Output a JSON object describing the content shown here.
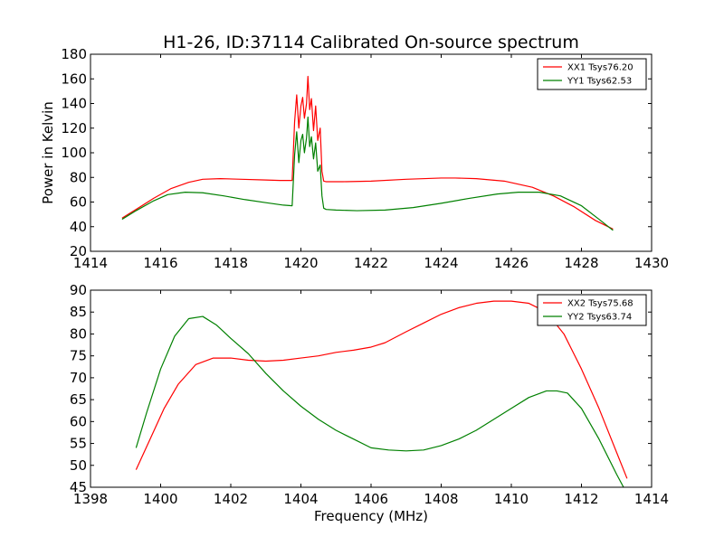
{
  "figure": {
    "title": "H1-26, ID:37114 Calibrated On-source spectrum"
  },
  "chart_data": [
    {
      "type": "line",
      "title": "H1-26, ID:37114 Calibrated On-source spectrum",
      "xlabel": "",
      "ylabel": "Power in Kelvin",
      "xlim": [
        1414,
        1430
      ],
      "ylim": [
        20,
        180
      ],
      "xticks": [
        "1414",
        "1416",
        "1418",
        "1420",
        "1422",
        "1424",
        "1426",
        "1428",
        "1430"
      ],
      "yticks": [
        "20",
        "40",
        "60",
        "80",
        "100",
        "120",
        "140",
        "160",
        "180"
      ],
      "grid": false,
      "legend_position": "top-right",
      "series": [
        {
          "name": "XX1 Tsys76.20",
          "color": "#ff0000",
          "x": [
            1414.9,
            1415.3,
            1415.8,
            1416.3,
            1416.8,
            1417.2,
            1417.7,
            1418.3,
            1418.9,
            1419.4,
            1419.75,
            1419.82,
            1419.88,
            1419.94,
            1420.0,
            1420.05,
            1420.1,
            1420.16,
            1420.2,
            1420.25,
            1420.3,
            1420.36,
            1420.42,
            1420.48,
            1420.55,
            1420.6,
            1420.65,
            1420.72,
            1421.2,
            1422.0,
            1423.0,
            1424.0,
            1424.4,
            1425.0,
            1425.8,
            1426.6,
            1427.2,
            1427.8,
            1428.4,
            1428.9
          ],
          "y": [
            47,
            54,
            63,
            71,
            76,
            78.5,
            79,
            78.5,
            78,
            77.5,
            77.5,
            125,
            147,
            120,
            138,
            145,
            128,
            140,
            162,
            135,
            144,
            118,
            138,
            110,
            120,
            85,
            77,
            76.5,
            76.5,
            77,
            78.5,
            79.5,
            79.5,
            79,
            77,
            72,
            65,
            56,
            45,
            38
          ]
        },
        {
          "name": "YY1 Tsys62.53",
          "color": "#008000",
          "x": [
            1414.9,
            1415.3,
            1415.8,
            1416.2,
            1416.7,
            1417.2,
            1417.8,
            1418.4,
            1419.0,
            1419.5,
            1419.75,
            1419.82,
            1419.88,
            1419.94,
            1420.0,
            1420.05,
            1420.1,
            1420.16,
            1420.2,
            1420.25,
            1420.3,
            1420.36,
            1420.42,
            1420.48,
            1420.55,
            1420.6,
            1420.65,
            1420.72,
            1421.0,
            1421.6,
            1422.4,
            1423.2,
            1424.0,
            1424.8,
            1425.6,
            1426.2,
            1426.8,
            1427.4,
            1428.0,
            1428.5,
            1428.9
          ],
          "y": [
            46,
            53,
            61,
            66,
            68,
            67.5,
            65,
            62,
            59.5,
            57.5,
            57,
            98,
            117,
            92,
            110,
            115,
            100,
            112,
            129,
            105,
            113,
            95,
            108,
            85,
            90,
            65,
            55,
            54,
            53.5,
            53,
            53.5,
            55.5,
            59,
            63,
            66.5,
            68,
            68,
            65,
            57,
            46,
            37
          ]
        }
      ]
    },
    {
      "type": "line",
      "title": "",
      "xlabel": "Frequency (MHz)",
      "ylabel": "",
      "xlim": [
        1398,
        1414
      ],
      "ylim": [
        45,
        90
      ],
      "xticks": [
        "1398",
        "1400",
        "1402",
        "1404",
        "1406",
        "1408",
        "1410",
        "1412",
        "1414"
      ],
      "yticks": [
        "45",
        "50",
        "55",
        "60",
        "65",
        "70",
        "75",
        "80",
        "85",
        "90"
      ],
      "grid": false,
      "legend_position": "top-right",
      "series": [
        {
          "name": "XX2 Tsys75.68",
          "color": "#ff0000",
          "x": [
            1399.3,
            1399.7,
            1400.1,
            1400.5,
            1401.0,
            1401.5,
            1402.0,
            1402.5,
            1403.0,
            1403.5,
            1404.0,
            1404.5,
            1405.0,
            1405.5,
            1406.0,
            1406.4,
            1407.0,
            1407.5,
            1408.0,
            1408.5,
            1409.0,
            1409.5,
            1410.0,
            1410.5,
            1411.0,
            1411.5,
            1412.0,
            1412.5,
            1413.0,
            1413.3
          ],
          "y": [
            49,
            56,
            63,
            68.5,
            73,
            74.5,
            74.5,
            74,
            73.8,
            74,
            74.5,
            75,
            75.8,
            76.3,
            77,
            78,
            80.5,
            82.5,
            84.5,
            86,
            87,
            87.5,
            87.5,
            87,
            85,
            80,
            72,
            63,
            53,
            47
          ]
        },
        {
          "name": "YY2 Tsys63.74",
          "color": "#008000",
          "x": [
            1399.3,
            1399.6,
            1400.0,
            1400.4,
            1400.8,
            1401.2,
            1401.6,
            1402.0,
            1402.5,
            1403.0,
            1403.5,
            1404.0,
            1404.5,
            1405.0,
            1405.5,
            1406.0,
            1406.5,
            1407.0,
            1407.5,
            1408.0,
            1408.5,
            1409.0,
            1409.5,
            1410.0,
            1410.5,
            1411.0,
            1411.3,
            1411.6,
            1412.0,
            1412.5,
            1413.0,
            1413.2
          ],
          "y": [
            54,
            62,
            72,
            79.5,
            83.5,
            84,
            82,
            79,
            75.5,
            71,
            67,
            63.5,
            60.5,
            58,
            56,
            54,
            53.5,
            53.3,
            53.5,
            54.5,
            56,
            58,
            60.5,
            63,
            65.5,
            67,
            67,
            66.5,
            63,
            56,
            48,
            45
          ]
        }
      ]
    }
  ]
}
